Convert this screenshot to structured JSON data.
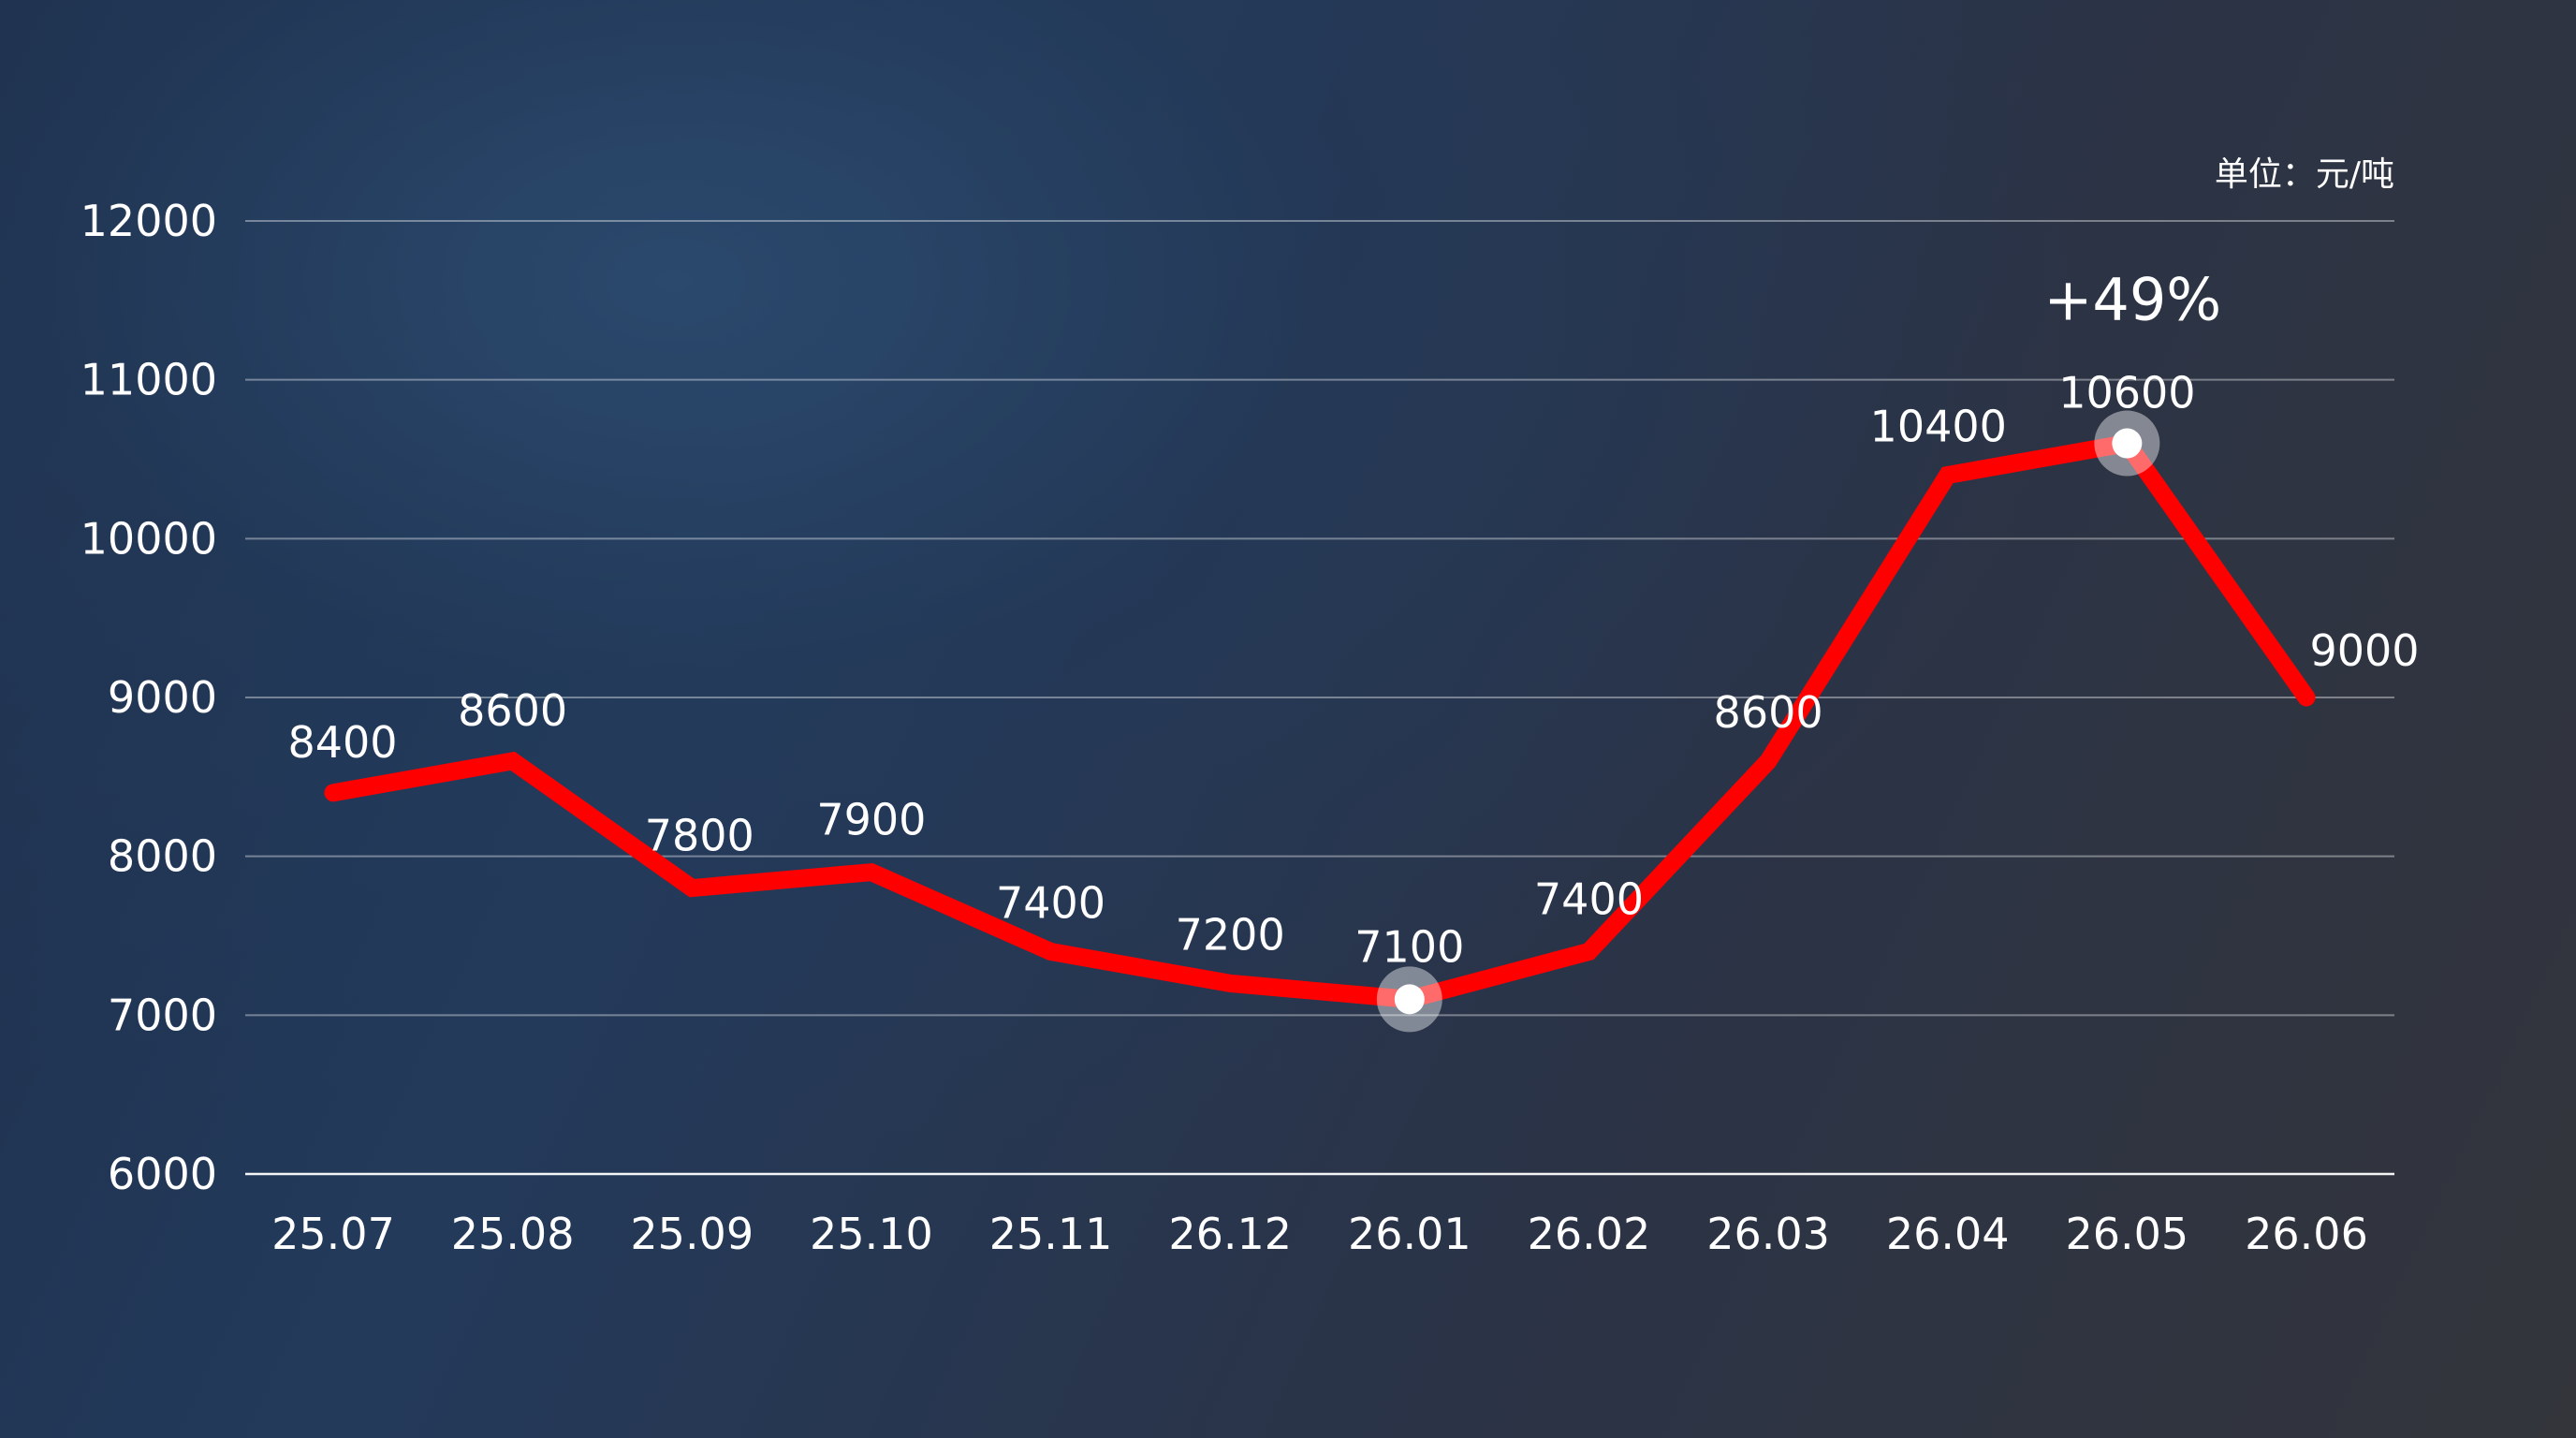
{
  "chart_data": {
    "type": "line",
    "categories": [
      "25.07",
      "25.08",
      "25.09",
      "25.10",
      "25.11",
      "26.12",
      "26.01",
      "26.02",
      "26.03",
      "26.04",
      "26.05",
      "26.06"
    ],
    "series": [
      {
        "values": [
          8400,
          8600,
          7800,
          7900,
          7400,
          7200,
          7100,
          7400,
          8600,
          10400,
          10600,
          9000
        ],
        "color": "#ff0000"
      }
    ],
    "data_labels": [
      "8400",
      "8600",
      "7800",
      "7900",
      "7400",
      "7200",
      "7100",
      "7400",
      "8600",
      "10400",
      "10600",
      "9000"
    ],
    "y_ticks": [
      6000,
      7000,
      8000,
      9000,
      10000,
      11000,
      12000
    ],
    "ylim": [
      6000,
      12000
    ],
    "grid": true,
    "unit": "单位：元/吨",
    "highlighted_points": [
      "26.01",
      "26.05"
    ],
    "annotation": {
      "text": "+49%",
      "at": "26.05"
    }
  },
  "colors": {
    "line": "#ff0000",
    "marker_fill": "#ffffff",
    "text": "#ffffff"
  }
}
